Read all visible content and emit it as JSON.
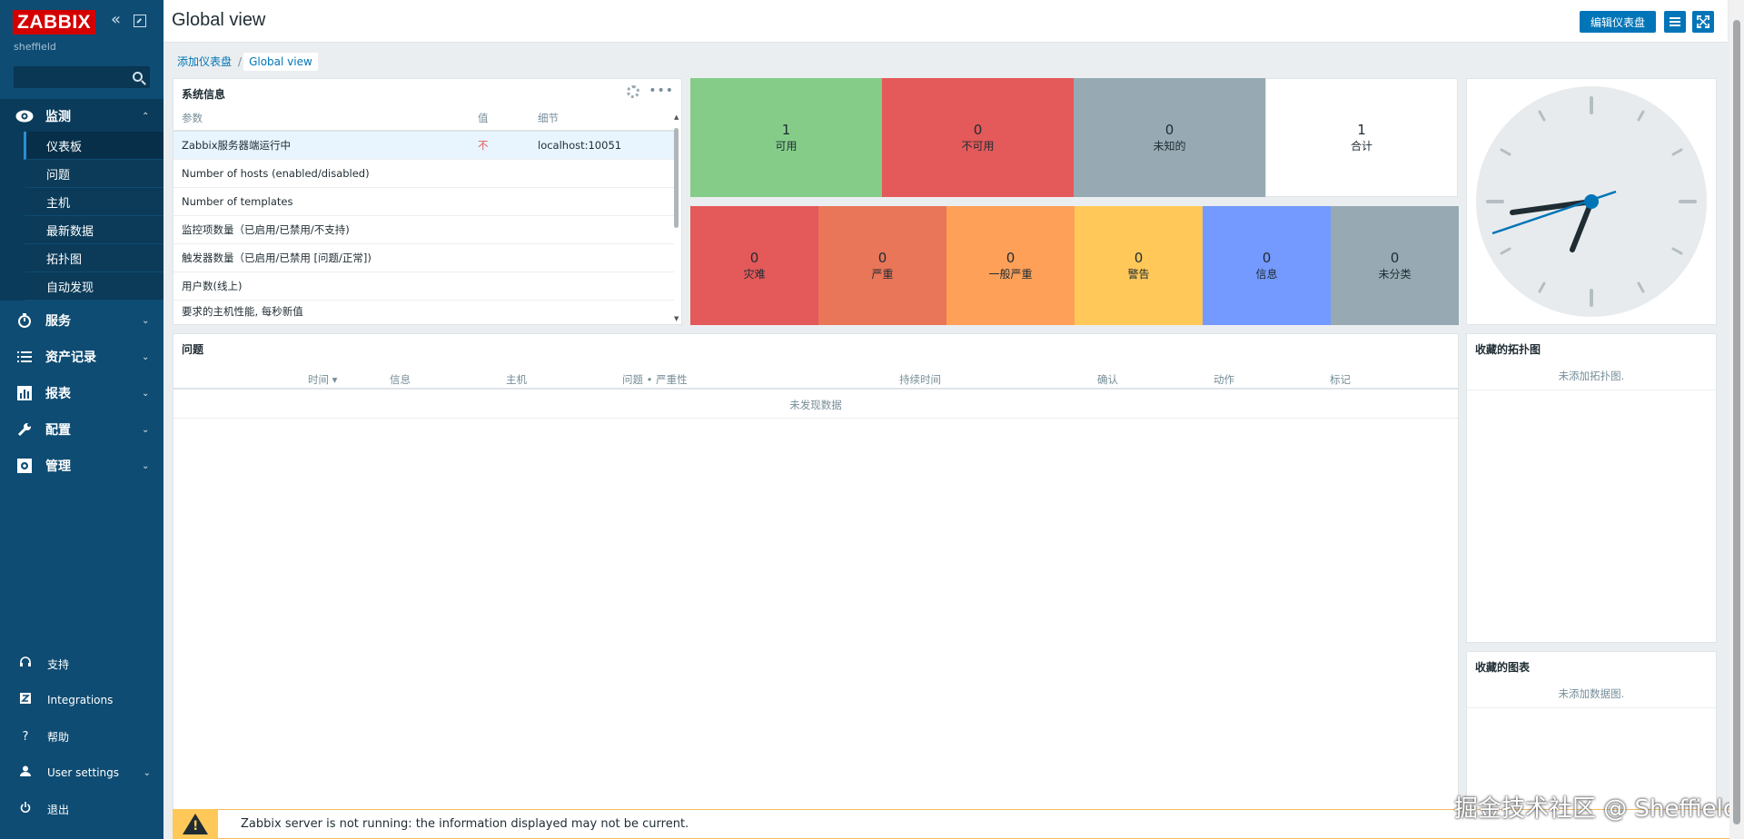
{
  "sidebar": {
    "logo": "ZABBIX",
    "server_name": "sheffield",
    "search_placeholder": "",
    "sections": [
      {
        "label": "监测",
        "icon": "eye-icon"
      },
      {
        "label": "服务",
        "icon": "clock-icon"
      },
      {
        "label": "资产记录",
        "icon": "list-icon"
      },
      {
        "label": "报表",
        "icon": "chart-icon"
      },
      {
        "label": "配置",
        "icon": "wrench-icon"
      },
      {
        "label": "管理",
        "icon": "gear-box-icon"
      }
    ],
    "monitoring_items": [
      "仪表板",
      "问题",
      "主机",
      "最新数据",
      "拓扑图",
      "自动发现"
    ],
    "bottom": [
      {
        "label": "支持",
        "icon": "headset-icon"
      },
      {
        "label": "Integrations",
        "icon": "z-icon"
      },
      {
        "label": "帮助",
        "icon": "question-icon"
      },
      {
        "label": "User settings",
        "icon": "user-icon"
      },
      {
        "label": "退出",
        "icon": "power-icon"
      }
    ]
  },
  "header": {
    "title": "Global view",
    "edit_button": "编辑仪表盘"
  },
  "breadcrumb": {
    "parent": "添加仪表盘",
    "separator": "/",
    "current": "Global view"
  },
  "system_info": {
    "title": "系统信息",
    "columns": [
      "参数",
      "值",
      "细节"
    ],
    "rows": [
      {
        "param": "Zabbix服务器端运行中",
        "value": "不",
        "detail": "localhost:10051"
      },
      {
        "param": "Number of hosts (enabled/disabled)",
        "value": "",
        "detail": ""
      },
      {
        "param": "Number of templates",
        "value": "",
        "detail": ""
      },
      {
        "param": "监控项数量（已启用/已禁用/不支持)",
        "value": "",
        "detail": ""
      },
      {
        "param": "触发器数量（已启用/已禁用 [问题/正常])",
        "value": "",
        "detail": ""
      },
      {
        "param": "用户数(线上)",
        "value": "",
        "detail": ""
      },
      {
        "param": "要求的主机性能, 每秒新值",
        "value": "",
        "detail": ""
      }
    ]
  },
  "host_availability": [
    {
      "count": "1",
      "label": "可用",
      "color": "#86cc89"
    },
    {
      "count": "0",
      "label": "不可用",
      "color": "#e45959"
    },
    {
      "count": "0",
      "label": "未知的",
      "color": "#97aab3"
    },
    {
      "count": "1",
      "label": "合计",
      "color": "#ffffff"
    }
  ],
  "problems_by_severity": [
    {
      "count": "0",
      "label": "灾难",
      "color": "#e45959"
    },
    {
      "count": "0",
      "label": "严重",
      "color": "#e97659"
    },
    {
      "count": "0",
      "label": "一般严重",
      "color": "#ffa059"
    },
    {
      "count": "0",
      "label": "警告",
      "color": "#ffc859"
    },
    {
      "count": "0",
      "label": "信息",
      "color": "#7499ff"
    },
    {
      "count": "0",
      "label": "未分类",
      "color": "#97aab3"
    }
  ],
  "problems": {
    "title": "问题",
    "columns": [
      "时间 ▾",
      "信息",
      "主机",
      "问题 • 严重性",
      "持续时间",
      "确认",
      "动作",
      "标记"
    ],
    "empty": "未发现数据"
  },
  "fav_maps": {
    "title": "收藏的拓扑图",
    "empty": "未添加拓扑图."
  },
  "fav_graphs": {
    "title": "收藏的图表",
    "empty": "未添加数据图."
  },
  "alert": {
    "message": "Zabbix server is not running: the information displayed may not be current."
  },
  "watermark": "掘金技术社区 @ Sheffield"
}
